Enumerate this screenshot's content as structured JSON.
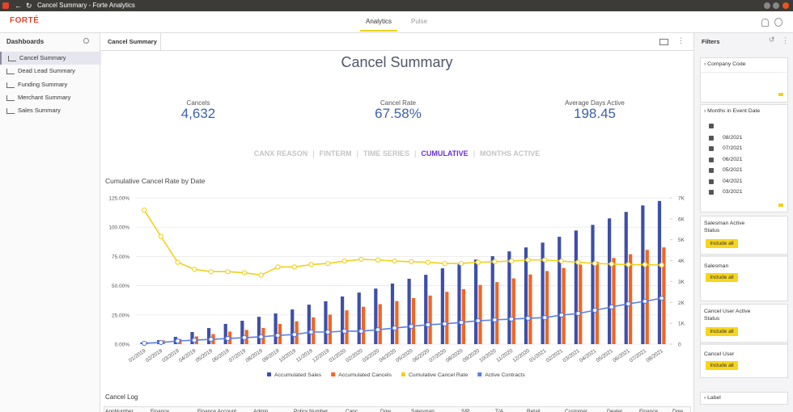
{
  "window": {
    "title": "Cancel Summary - Forte Analytics"
  },
  "header": {
    "logo": "FORTÉ",
    "tabs": [
      "Analytics",
      "Pulse"
    ]
  },
  "sidebar": {
    "title": "Dashboards",
    "items": [
      "Cancel Summary",
      "Dead Lead Summary",
      "Funding Summary",
      "Merchant Summary",
      "Sales Summary"
    ]
  },
  "main": {
    "tab": "Cancel Summary",
    "title": "Cancel Summary",
    "kpis": [
      {
        "label": "Cancels",
        "value": "4,632"
      },
      {
        "label": "Cancel Rate",
        "value": "67.58%"
      },
      {
        "label": "Average Days Active",
        "value": "198.45"
      }
    ],
    "views": [
      "CANX REASON",
      "FINTERM",
      "TIME SERIES",
      "CUMULATIVE",
      "MONTHS ACTIVE"
    ],
    "section": "Cancel Log",
    "columns": [
      "AppNumber",
      "Finance",
      "Finance Account",
      "Admin",
      "Policy Number",
      "Canc",
      "Dow",
      "Salesman",
      "SIP",
      "T/A",
      "Retail",
      "Customer",
      "Dealer",
      "Finance",
      "Dow"
    ]
  },
  "filters": {
    "title": "Filters",
    "company_code": "Company Code",
    "months": {
      "title": "Months in Event Date",
      "items": [
        "08/2021",
        "07/2021",
        "06/2021",
        "05/2021",
        "04/2021",
        "03/2021"
      ]
    },
    "groups": [
      {
        "title": "Salesman Active Status",
        "button": "Include all"
      },
      {
        "title": "Salesman",
        "button": "Include all"
      },
      {
        "title": "Cancel User Active Status",
        "button": "Include all"
      },
      {
        "title": "Cancel User",
        "button": "Include all"
      }
    ],
    "label": "Label"
  },
  "chart_data": {
    "type": "combo",
    "title": "Cumulative Cancel Rate by Date",
    "categories": [
      "01/2019",
      "02/2019",
      "03/2019",
      "04/2019",
      "05/2019",
      "06/2019",
      "07/2019",
      "08/2019",
      "09/2019",
      "10/2019",
      "11/2019",
      "12/2019",
      "01/2020",
      "02/2020",
      "03/2020",
      "04/2020",
      "05/2020",
      "06/2020",
      "07/2020",
      "08/2020",
      "09/2020",
      "10/2020",
      "11/2020",
      "12/2020",
      "01/2021",
      "02/2021",
      "03/2021",
      "04/2021",
      "05/2021",
      "06/2021",
      "07/2021",
      "08/2021"
    ],
    "ylim": [
      0,
      125
    ],
    "yticks": [
      {
        "value": 0,
        "label": "0.00%"
      },
      {
        "value": 25,
        "label": "25.00%"
      },
      {
        "value": 50,
        "label": "50.00%"
      },
      {
        "value": 75,
        "label": "75.00%"
      },
      {
        "value": 100,
        "label": "100.00%"
      },
      {
        "value": 125,
        "label": "125.00%"
      }
    ],
    "y2lim": [
      0,
      7000
    ],
    "y2ticks": [
      0,
      {
        "value": 1000,
        "label": "1K"
      },
      {
        "value": 2000,
        "label": "2K"
      },
      {
        "value": 3000,
        "label": "3K"
      },
      {
        "value": 4000,
        "label": "4K"
      },
      {
        "value": 5000,
        "label": "5K"
      },
      {
        "value": 6000,
        "label": "6K"
      },
      {
        "value": 7000,
        "label": "7K"
      }
    ],
    "grid": true,
    "series": [
      {
        "name": "Accumulated Sales",
        "type": "bar",
        "axis": "y2",
        "color": "#3d4fa8",
        "values": [
          80,
          190,
          350,
          580,
          770,
          970,
          1120,
          1310,
          1470,
          1660,
          1890,
          2050,
          2280,
          2470,
          2660,
          2900,
          3130,
          3320,
          3630,
          3820,
          4050,
          4210,
          4440,
          4630,
          4860,
          5140,
          5440,
          5710,
          6020,
          6330,
          6640,
          6854
        ]
      },
      {
        "name": "Accumulated Cancels",
        "type": "bar",
        "axis": "y2",
        "color": "#f26522",
        "values": [
          90,
          175,
          245,
          370,
          480,
          600,
          680,
          775,
          970,
          1095,
          1285,
          1415,
          1620,
          1790,
          1915,
          2060,
          2205,
          2325,
          2505,
          2635,
          2835,
          2970,
          3150,
          3335,
          3500,
          3650,
          3810,
          3940,
          4125,
          4305,
          4515,
          4632
        ]
      },
      {
        "name": "Cumulative Cancel Rate",
        "type": "line",
        "color": "#f2d01c",
        "values": [
          114.6,
          92,
          70,
          64,
          62,
          62,
          61,
          59,
          66,
          66,
          68,
          69,
          71,
          72.5,
          72,
          71,
          70.5,
          70,
          69,
          69,
          70,
          70.5,
          71,
          72,
          72,
          71,
          70,
          69,
          68.5,
          68,
          68,
          67.58
        ]
      },
      {
        "name": "Active Contracts",
        "type": "line",
        "axis": "y2",
        "color": "#5b7fe3",
        "values": [
          40,
          80,
          150,
          190,
          230,
          270,
          310,
          350,
          420,
          460,
          580,
          580,
          620,
          620,
          690,
          770,
          850,
          930,
          970,
          1040,
          1120,
          1160,
          1200,
          1240,
          1270,
          1390,
          1470,
          1620,
          1780,
          1930,
          2050,
          2200
        ]
      }
    ]
  }
}
